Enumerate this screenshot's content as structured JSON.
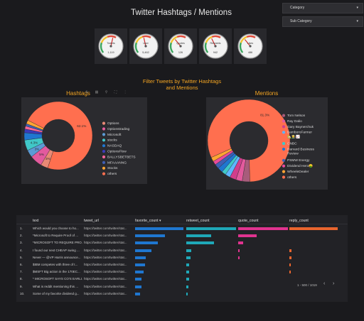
{
  "title": "Twitter Hashtags / Mentions",
  "filters": {
    "category_label": "Category",
    "subcategory_label": "Sub Category"
  },
  "gauges": [
    {
      "label": "Tweets",
      "value": "1,119",
      "level": 0.55
    },
    {
      "label": "User",
      "value": "5,462",
      "level": 0.45
    },
    {
      "label": "Quotes",
      "value": "126",
      "level": 0.35
    },
    {
      "label": "Retweets",
      "value": "942",
      "level": 0.4
    },
    {
      "label": "Likes",
      "value": "486",
      "level": 0.35
    }
  ],
  "filter_note": "Filter Tweets by Twitter Hashtags and Mentions",
  "toolbar_icons": [
    "sort-icon",
    "chart-icon",
    "filter-icon",
    "fullscreen-icon",
    "more-icon"
  ],
  "chart_data": [
    {
      "type": "pie",
      "title": "Hashtags",
      "labels": [
        "Options",
        "Optionstrading",
        "Microsoft",
        "stocks",
        "NASDAQ",
        "OptionsFlow",
        "BALLYSBETBETS",
        "MFAAANNG",
        "Stocks",
        "others"
      ],
      "values": [
        3.0,
        5.0,
        3.0,
        4.3,
        3.0,
        1.5,
        1.2,
        1.0,
        1.5,
        62.1
      ],
      "colors": [
        "#e98975",
        "#e35a9d",
        "#5b9bd5",
        "#40c8c8",
        "#1f77d0",
        "#3b3bb8",
        "#ff6699",
        "#3f5fb3",
        "#ffa533",
        "#ff6f4f"
      ],
      "data_labels": [
        "3%",
        "5%",
        "3%",
        "4.3%",
        "",
        "",
        "",
        "",
        "",
        "62.1%"
      ]
    },
    {
      "type": "pie",
      "title": "Mentions",
      "labels": [
        "Tom Nelson",
        "Ray Dalio",
        "Gary Baynerchuk",
        "BamboroFarmer 🏡👨‍🌾📈",
        "CNBC",
        "Harvard Business Review",
        "PSMW Energy",
        "Dividend Hero🤑",
        "WheeleDealer",
        "others"
      ],
      "values": [
        3.0,
        2.5,
        2.5,
        2.0,
        1.7,
        2.0,
        1.8,
        1.5,
        1.7,
        81.3
      ],
      "colors": [
        "#a85c7b",
        "#e35a9d",
        "#d13e8c",
        "#5fb5ff",
        "#40c8c8",
        "#1f77d0",
        "#3f5fb3",
        "#e84b9b",
        "#ffa533",
        "#ff6f4f"
      ],
      "data_labels": [
        "",
        "",
        "",
        "",
        "",
        "",
        "",
        "",
        "",
        "81.3%"
      ]
    }
  ],
  "table": {
    "columns": [
      "text",
      "tweet_url",
      "favorite_count",
      "retweet_count",
      "quote_count",
      "reply_count"
    ],
    "sort_arrow": "▾",
    "rows": [
      {
        "num": "1.",
        "text": "Which would you choose to ho...",
        "url": "https://twitter.com/twitter/stat...",
        "fav": 1.0,
        "rt": 1.0,
        "quote": 1.0,
        "reply": 1.0
      },
      {
        "num": "2.",
        "text": "*Microsoft to Require Proof of ...",
        "url": "https://twitter.com/twitter/stat...",
        "fav": 0.62,
        "rt": 0.5,
        "quote": 0.37,
        "reply": 0.0
      },
      {
        "num": "3.",
        "text": "*MICROSOFT TO REQUIRE PRO...",
        "url": "https://twitter.com/twitter/stat...",
        "fav": 0.47,
        "rt": 0.55,
        "quote": 0.1,
        "reply": 0.0
      },
      {
        "num": "4.",
        "text": "I found our next CHEAP swing ...",
        "url": "https://twitter.com/twitter/stat...",
        "fav": 0.34,
        "rt": 0.1,
        "quote": 0.02,
        "reply": 0.04
      },
      {
        "num": "5.",
        "text": "Never — @VP Harris announce...",
        "url": "https://twitter.com/twitter/stat...",
        "fav": 0.22,
        "rt": 0.08,
        "quote": 0.02,
        "reply": 0.04
      },
      {
        "num": "6.",
        "text": "$IBM competes with three of t...",
        "url": "https://twitter.com/twitter/stat...",
        "fav": 0.2,
        "rt": 0.05,
        "quote": 0.0,
        "reply": 0.03
      },
      {
        "num": "7.",
        "text": "$MSFT Big action in the 170EC...",
        "url": "https://twitter.com/twitter/stat...",
        "fav": 0.18,
        "rt": 0.06,
        "quote": 0.0,
        "reply": 0.03
      },
      {
        "num": "8.",
        "text": "* MICROSOFT SAYS CO'S EARLI...",
        "url": "https://twitter.com/twitter/stat...",
        "fav": 0.13,
        "rt": 0.05,
        "quote": 0.0,
        "reply": 0.0
      },
      {
        "num": "9.",
        "text": "What is reddit mentioning this ...",
        "url": "https://twitter.com/twitter/stat...",
        "fav": 0.13,
        "rt": 0.04,
        "quote": 0.0,
        "reply": 0.0
      },
      {
        "num": "10.",
        "text": "Some of my favorite dividend g...",
        "url": "https://twitter.com/twitter/stat...",
        "fav": 0.1,
        "rt": 0.03,
        "quote": 0.0,
        "reply": 0.0
      }
    ],
    "bar_colors": {
      "fav": "#1f77d0",
      "rt": "#1fa8b8",
      "quote": "#e0338f",
      "reply": "#e8652e"
    },
    "pager_text": "1 - 500 / 1019",
    "prev_icon": "‹",
    "next_icon": "›"
  }
}
